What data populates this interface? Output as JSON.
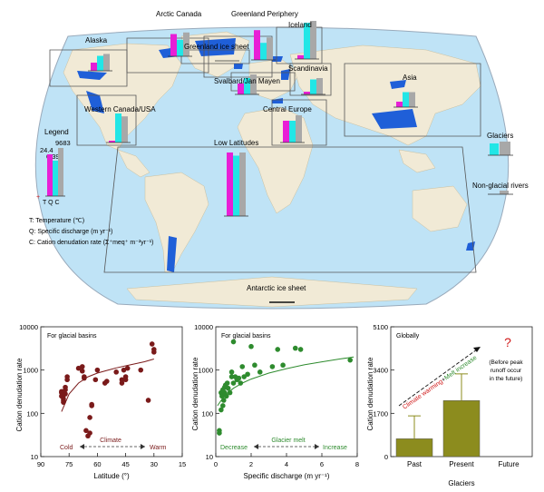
{
  "colors": {
    "temperature": "#e81fd6",
    "discharge": "#22e6e6",
    "cation": "#a8a8a8",
    "ocean": "#bfe3f6",
    "land": "#f1ead6",
    "glacier": "#1f5fd8",
    "box": "#555555",
    "panel1": "#7a1a1a",
    "panel2": "#2e8b2e",
    "panel3_bar": "#8c8c1e",
    "arrow_red": "#d01818",
    "arrow_green": "#2e8b2e"
  },
  "map": {
    "legend": {
      "title": "Legend",
      "value_c": "9683",
      "value_t": "24.4",
      "value_q": "6.39",
      "zero_mark": "+",
      "axis_letters": "T Q C",
      "desc_t": "T: Temperature (℃)",
      "desc_q": "Q: Specific discharge (m yr⁻¹)",
      "desc_c": "C: Cation denudation rate (Σ⁺meq⁺ m⁻²yr⁻¹)"
    },
    "regions": [
      {
        "name": "Alaska",
        "t": 0.3,
        "q": 0.55,
        "c": 0.62
      },
      {
        "name": "Arctic Canada",
        "t": 0.7,
        "q": 0.52,
        "c": 0.75
      },
      {
        "name": "Greenland Periphery",
        "t": 0.82,
        "q": 0.47,
        "c": 0.62
      },
      {
        "name": "Iceland",
        "t": 0.1,
        "q": 0.95,
        "c": 1.0
      },
      {
        "name": "Greenland ice sheet",
        "t": 0.0,
        "q": 0.0,
        "c": 0.0
      },
      {
        "name": "Svalbard/Jan Mayen",
        "t": 0.3,
        "q": 0.45,
        "c": 0.55
      },
      {
        "name": "Scandinavia",
        "t": 0.1,
        "q": 0.55,
        "c": 0.6
      },
      {
        "name": "Western Canada/USA",
        "t": 0.05,
        "q": 0.8,
        "c": 0.72
      },
      {
        "name": "Central Europe",
        "t": 0.6,
        "q": 0.6,
        "c": 0.75
      },
      {
        "name": "Asia",
        "t": 0.2,
        "q": 0.55,
        "c": 0.55
      },
      {
        "name": "Low Latitudes",
        "t": 1.0,
        "q": 0.95,
        "c": 1.0
      },
      {
        "name": "Antarctic ice sheet",
        "t": 0.0,
        "q": 0.0,
        "c": 0.0
      }
    ],
    "key": {
      "glaciers": "Glaciers",
      "nonglacial": "Non-glacial rivers"
    }
  },
  "chart_data": [
    {
      "type": "scatter",
      "title": "For glacial basins",
      "xlabel": "Latitude (°)",
      "ylabel": "Cation denudation rate",
      "xlim": [
        90,
        15
      ],
      "x_reversed": true,
      "ylim": [
        10,
        10000
      ],
      "yscale": "log",
      "xticks": [
        "90",
        "75",
        "60",
        "45",
        "30",
        "15"
      ],
      "yticks": [
        "10",
        "100",
        "1000",
        "10000"
      ],
      "annotation_left": "Cold",
      "annotation_mid": "Climate",
      "annotation_right": "Warm",
      "x": [
        79,
        79,
        78,
        78,
        78,
        77,
        77,
        78,
        79,
        77,
        76,
        76,
        70,
        68,
        68,
        67,
        67,
        66,
        65,
        64,
        64,
        63,
        63,
        61,
        60,
        56,
        55,
        50,
        47,
        47,
        46,
        45,
        45,
        44,
        37,
        33,
        31,
        30,
        30
      ],
      "y": [
        300,
        250,
        200,
        180,
        270,
        350,
        280,
        220,
        320,
        400,
        600,
        700,
        1100,
        950,
        1200,
        700,
        650,
        40,
        30,
        35,
        80,
        150,
        160,
        600,
        1000,
        500,
        550,
        900,
        500,
        600,
        1000,
        600,
        700,
        1100,
        1000,
        200,
        4000,
        3000,
        2600
      ],
      "fit_x": [
        79,
        75,
        70,
        65,
        60,
        55,
        50,
        45,
        40,
        35,
        30
      ],
      "fit_y": [
        110,
        280,
        500,
        700,
        850,
        980,
        1120,
        1250,
        1400,
        1560,
        1800
      ]
    },
    {
      "type": "scatter",
      "title": "For glacial basins",
      "xlabel": "Specific discharge (m yr⁻¹)",
      "ylabel": "Cation denudation rate",
      "xlim": [
        0,
        8
      ],
      "ylim": [
        10,
        10000
      ],
      "yscale": "log",
      "xticks": [
        "0",
        "2",
        "4",
        "6",
        "8"
      ],
      "yticks": [
        "10",
        "100",
        "1000",
        "10000"
      ],
      "annotation_left": "Decrease",
      "annotation_mid": "Glacier melt",
      "annotation_right": "Increase",
      "x": [
        0.2,
        0.2,
        0.3,
        0.3,
        0.35,
        0.4,
        0.4,
        0.45,
        0.5,
        0.5,
        0.55,
        0.6,
        0.65,
        0.7,
        0.8,
        0.9,
        0.9,
        1.0,
        1.0,
        1.1,
        1.2,
        1.3,
        1.4,
        1.5,
        1.6,
        1.8,
        2.0,
        2.2,
        2.5,
        3.2,
        3.5,
        3.8,
        4.5,
        4.8,
        7.6
      ],
      "y": [
        40,
        35,
        120,
        300,
        250,
        150,
        350,
        200,
        300,
        400,
        450,
        250,
        500,
        380,
        300,
        700,
        900,
        4500,
        500,
        700,
        600,
        650,
        500,
        1200,
        700,
        800,
        3500,
        1300,
        900,
        1200,
        3000,
        1300,
        3200,
        3000,
        1700
      ],
      "fit_x": [
        0.1,
        0.5,
        1,
        1.5,
        2,
        3,
        4,
        5,
        6,
        7,
        7.8
      ],
      "fit_y": [
        150,
        260,
        380,
        500,
        620,
        850,
        1080,
        1320,
        1550,
        1800,
        2000
      ]
    },
    {
      "type": "bar",
      "title": "Globally",
      "xlabel": "Glaciers",
      "ylabel": "Cation denudation rate",
      "categories": [
        "Past",
        "Present",
        "Future"
      ],
      "values": [
        700,
        2200,
        null
      ],
      "errors": [
        900,
        1050,
        null
      ],
      "ylim": [
        0,
        5100
      ],
      "yticks": [
        "0",
        "1700",
        "3400",
        "5100"
      ],
      "arrow_label_red": "Climate warming",
      "arrow_label_sep": "+",
      "arrow_label_green": "Melt increase",
      "question_mark": "?",
      "note_line1": "(Before peak",
      "note_line2": "runoff occur",
      "note_line3": "in the future)"
    }
  ]
}
